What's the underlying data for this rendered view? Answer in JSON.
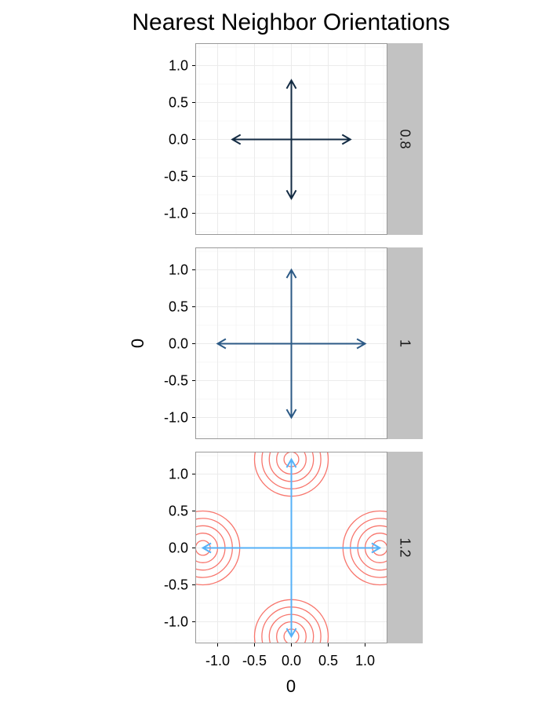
{
  "chart_data": {
    "type": "faceted-vector-field",
    "title": "Nearest Neighbor Orientations",
    "xlabel": "0",
    "ylabel": "0",
    "xlim": [
      -1.3,
      1.3
    ],
    "ylim": [
      -1.3,
      1.3
    ],
    "x_ticks": [
      "-1.0",
      "-0.5",
      "0.0",
      "0.5",
      "1.0"
    ],
    "y_ticks": [
      "1.0",
      "0.5",
      "0.0",
      "-0.5",
      "-1.0"
    ],
    "grid": true,
    "facets": [
      {
        "label": "0.8",
        "arrow_color": "#132b43",
        "arrows": [
          {
            "x1": 0,
            "y1": 0,
            "x2": 0.8,
            "y2": 0
          },
          {
            "x1": 0,
            "y1": 0,
            "x2": -0.8,
            "y2": 0
          },
          {
            "x1": 0,
            "y1": 0,
            "x2": 0,
            "y2": 0.8
          },
          {
            "x1": 0,
            "y1": 0,
            "x2": 0,
            "y2": -0.8
          }
        ],
        "contours": []
      },
      {
        "label": "1",
        "arrow_color": "#2c5a86",
        "arrows": [
          {
            "x1": 0,
            "y1": 0,
            "x2": 1.0,
            "y2": 0
          },
          {
            "x1": 0,
            "y1": 0,
            "x2": -1.0,
            "y2": 0
          },
          {
            "x1": 0,
            "y1": 0,
            "x2": 0,
            "y2": 1.0
          },
          {
            "x1": 0,
            "y1": 0,
            "x2": 0,
            "y2": -1.0
          }
        ],
        "contours": []
      },
      {
        "label": "1.2",
        "arrow_color": "#56b1f7",
        "arrows": [
          {
            "x1": 0,
            "y1": 0,
            "x2": 1.2,
            "y2": 0
          },
          {
            "x1": 0,
            "y1": 0,
            "x2": -1.2,
            "y2": 0
          },
          {
            "x1": 0,
            "y1": 0,
            "x2": 0,
            "y2": 1.2
          },
          {
            "x1": 0,
            "y1": 0,
            "x2": 0,
            "y2": -1.2
          }
        ],
        "contour_color": "#f8766d",
        "contours": [
          {
            "center": [
              1.2,
              0
            ],
            "radii": [
              0.1,
              0.2,
              0.3,
              0.4,
              0.5
            ]
          },
          {
            "center": [
              -1.2,
              0
            ],
            "radii": [
              0.1,
              0.2,
              0.3,
              0.4,
              0.5
            ]
          },
          {
            "center": [
              0,
              1.2
            ],
            "radii": [
              0.1,
              0.2,
              0.3,
              0.4,
              0.5
            ]
          },
          {
            "center": [
              0,
              -1.2
            ],
            "radii": [
              0.1,
              0.2,
              0.3,
              0.4,
              0.5
            ]
          }
        ]
      }
    ],
    "colors": {
      "panel_background": "#ffffff",
      "grid_major": "#ebebeb",
      "grid_minor": "#f5f5f5",
      "panel_border": "#999999",
      "strip_background": "#c2c2c2"
    }
  }
}
